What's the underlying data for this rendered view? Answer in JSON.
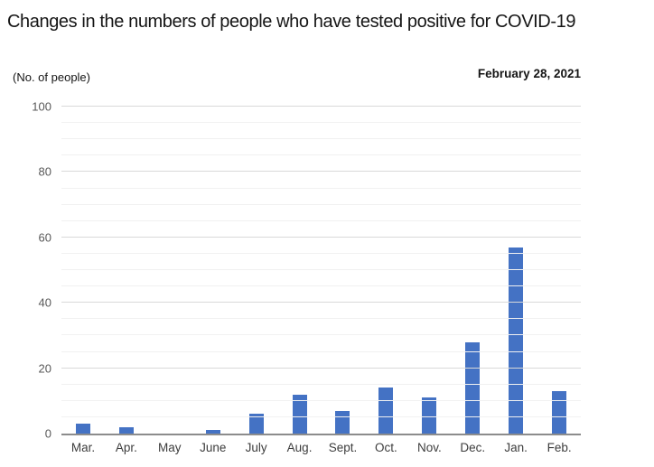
{
  "header": {
    "title": "Changes in the numbers of people who have tested positive for COVID-19",
    "date_label": "February 28, 2021"
  },
  "chart_data": {
    "type": "bar",
    "title": "Changes in the numbers of people who have tested positive for COVID-19",
    "unit_label": "(No. of people)",
    "annotation_date": "February 28, 2021",
    "xlabel": "",
    "ylabel": "No. of people",
    "categories": [
      "Mar.",
      "Apr.",
      "May",
      "June",
      "July",
      "Aug.",
      "Sept.",
      "Oct.",
      "Nov.",
      "Dec.",
      "Jan.",
      "Feb."
    ],
    "values": [
      3,
      2,
      0,
      1,
      6,
      12,
      7,
      14,
      11,
      28,
      57,
      13
    ],
    "ylim": [
      0,
      100
    ],
    "yticks": [
      0,
      20,
      40,
      60,
      80,
      100
    ],
    "minor_grid_step": 5,
    "grid": true,
    "legend": "none",
    "bar_color": "#4472C4",
    "major_gridline_color": "#d9d9d9",
    "minor_gridline_color": "#f1f1f1",
    "axis_line_color": "#8c8c8c",
    "tick_label_color": "#595959",
    "category_label_color": "#3d3d3d"
  }
}
